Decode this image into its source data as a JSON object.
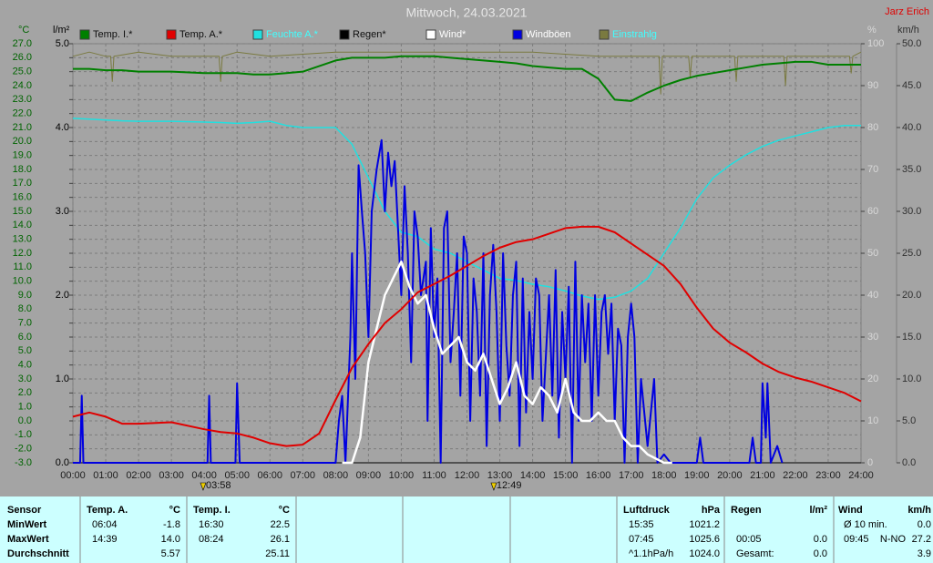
{
  "chart_data": {
    "type": "line",
    "title": "Mittwoch, 24.03.2021",
    "author": "Jarz Erich",
    "grid": true,
    "ylabel": "°C",
    "ylim": [
      -3,
      27
    ],
    "yticks": [
      {
        "value": -3,
        "label": "-3.0"
      },
      {
        "value": -2,
        "label": "-2.0"
      },
      {
        "value": -1,
        "label": "-1.0"
      },
      {
        "value": 0,
        "label": "0.0"
      },
      {
        "value": 1,
        "label": "1.0"
      },
      {
        "value": 2,
        "label": "2.0"
      },
      {
        "value": 3,
        "label": "3.0"
      },
      {
        "value": 4,
        "label": "4.0"
      },
      {
        "value": 5,
        "label": "5.0"
      },
      {
        "value": 6,
        "label": "6.0"
      },
      {
        "value": 7,
        "label": "7.0"
      },
      {
        "value": 8,
        "label": "8.0"
      },
      {
        "value": 9,
        "label": "9.0"
      },
      {
        "value": 10,
        "label": "10.0"
      },
      {
        "value": 11,
        "label": "11.0"
      },
      {
        "value": 12,
        "label": "12.0"
      },
      {
        "value": 13,
        "label": "13.0"
      },
      {
        "value": 14,
        "label": "14.0"
      },
      {
        "value": 15,
        "label": "15.0"
      },
      {
        "value": 16,
        "label": "16.0"
      },
      {
        "value": 17,
        "label": "17.0"
      },
      {
        "value": 18,
        "label": "18.0"
      },
      {
        "value": 19,
        "label": "19.0"
      },
      {
        "value": 20,
        "label": "20.0"
      },
      {
        "value": 21,
        "label": "21.0"
      },
      {
        "value": 22,
        "label": "22.0"
      },
      {
        "value": 23,
        "label": "23.0"
      },
      {
        "value": 24,
        "label": "24.0"
      },
      {
        "value": 25,
        "label": "25.0"
      },
      {
        "value": 26,
        "label": "26.0"
      },
      {
        "value": 27,
        "label": "27.0"
      }
    ],
    "y2label": "l/m²",
    "y2lim": [
      0,
      5
    ],
    "y2ticks": [
      {
        "value": 0,
        "label": "0.0"
      },
      {
        "value": 1,
        "label": "1.0"
      },
      {
        "value": 2,
        "label": "2.0"
      },
      {
        "value": 3,
        "label": "3.0"
      },
      {
        "value": 4,
        "label": "4.0"
      },
      {
        "value": 5,
        "label": "5.0"
      }
    ],
    "y3label": "%",
    "y3lim": [
      0,
      100
    ],
    "y3ticks": [
      0,
      10,
      20,
      30,
      40,
      50,
      60,
      70,
      80,
      90,
      100
    ],
    "y4label": "km/h",
    "y4lim": [
      0,
      50
    ],
    "y4ticks": [
      {
        "value": 0,
        "label": "0.0"
      },
      {
        "value": 5,
        "label": "5.0"
      },
      {
        "value": 10,
        "label": "10.0"
      },
      {
        "value": 15,
        "label": "15.0"
      },
      {
        "value": 20,
        "label": "20.0"
      },
      {
        "value": 25,
        "label": "25.0"
      },
      {
        "value": 30,
        "label": "30.0"
      },
      {
        "value": 35,
        "label": "35.0"
      },
      {
        "value": 40,
        "label": "40.0"
      },
      {
        "value": 45,
        "label": "45.0"
      },
      {
        "value": 50,
        "label": "50.0"
      }
    ],
    "xlim": [
      0,
      24
    ],
    "xticks": [
      {
        "value": 0,
        "label": "00:00"
      },
      {
        "value": 1,
        "label": "01:00"
      },
      {
        "value": 2,
        "label": "02:00"
      },
      {
        "value": 3,
        "label": "03:00"
      },
      {
        "value": 4,
        "label": "04:00"
      },
      {
        "value": 5,
        "label": "05:00"
      },
      {
        "value": 6,
        "label": "06:00"
      },
      {
        "value": 7,
        "label": "07:00"
      },
      {
        "value": 8,
        "label": "08:00"
      },
      {
        "value": 9,
        "label": "09:00"
      },
      {
        "value": 10,
        "label": "10:00"
      },
      {
        "value": 11,
        "label": "11:00"
      },
      {
        "value": 12,
        "label": "12:00"
      },
      {
        "value": 13,
        "label": "13:00"
      },
      {
        "value": 14,
        "label": "14:00"
      },
      {
        "value": 15,
        "label": "15:00"
      },
      {
        "value": 16,
        "label": "16:00"
      },
      {
        "value": 17,
        "label": "17:00"
      },
      {
        "value": 18,
        "label": "18:00"
      },
      {
        "value": 19,
        "label": "19:00"
      },
      {
        "value": 20,
        "label": "20:00"
      },
      {
        "value": 21,
        "label": "21:00"
      },
      {
        "value": 22,
        "label": "22:00"
      },
      {
        "value": 23,
        "label": "23:00"
      },
      {
        "value": 24,
        "label": "24:00"
      }
    ],
    "annotations": [
      {
        "x": 3.9667,
        "label": "03:58"
      },
      {
        "x": 12.8167,
        "label": "12:49"
      }
    ],
    "x": [
      0,
      0.5,
      1,
      1.5,
      2,
      3,
      4,
      4.5,
      5,
      5.5,
      6,
      6.5,
      7,
      7.5,
      8,
      8.5,
      9,
      9.5,
      10,
      10.5,
      11,
      11.5,
      12,
      12.5,
      13,
      13.5,
      14,
      14.5,
      15,
      15.5,
      16,
      16.5,
      17,
      17.5,
      18,
      18.5,
      19,
      19.5,
      20,
      20.5,
      21,
      21.5,
      22,
      22.5,
      23,
      23.5,
      24
    ],
    "series": [
      {
        "name": "Temp. I.*",
        "color": "#008000",
        "axis": "y",
        "values": [
          25.2,
          25.2,
          25.1,
          25.1,
          25.0,
          25.0,
          24.9,
          24.9,
          24.9,
          24.8,
          24.8,
          24.9,
          25.0,
          25.4,
          25.8,
          26.0,
          26.0,
          26.0,
          26.1,
          26.1,
          26.1,
          26.0,
          25.9,
          25.8,
          25.7,
          25.6,
          25.4,
          25.3,
          25.2,
          25.2,
          24.5,
          23.0,
          22.9,
          23.5,
          24.0,
          24.4,
          24.7,
          24.9,
          25.1,
          25.3,
          25.5,
          25.6,
          25.7,
          25.7,
          25.5,
          25.5,
          25.5
        ]
      },
      {
        "name": "Temp. A.*",
        "color": "#e00000",
        "axis": "y",
        "values": [
          0.3,
          0.6,
          0.3,
          -0.2,
          -0.2,
          -0.1,
          -0.6,
          -0.8,
          -0.9,
          -1.2,
          -1.6,
          -1.8,
          -1.7,
          -0.9,
          1.5,
          3.8,
          5.5,
          7.0,
          8.0,
          9.2,
          9.8,
          10.4,
          11.1,
          11.8,
          12.4,
          12.8,
          13.0,
          13.4,
          13.8,
          13.9,
          13.9,
          13.5,
          12.7,
          11.9,
          11.1,
          9.8,
          8.1,
          6.6,
          5.6,
          4.9,
          4.1,
          3.5,
          3.1,
          2.8,
          2.4,
          2.0,
          1.4
        ]
      },
      {
        "name": "Feuchte A.*",
        "color": "#20e0e0",
        "axis": "y3",
        "values": [
          82.2,
          82,
          81.8,
          81.6,
          81.5,
          81.5,
          81.3,
          81.2,
          81.0,
          81.2,
          81.5,
          80.5,
          80.0,
          80.0,
          80.0,
          76,
          68,
          60,
          55,
          54,
          51,
          50,
          48,
          46,
          44,
          43.5,
          42.6,
          42,
          41,
          39.8,
          39,
          39.5,
          41,
          44,
          50,
          56,
          63,
          68,
          71,
          73.5,
          75.5,
          77,
          78,
          79,
          80,
          80.5,
          80.5
        ]
      },
      {
        "name": "Regen*",
        "color": "#000000",
        "axis": "y2",
        "x": [
          0,
          24
        ],
        "values": [
          0,
          0
        ]
      },
      {
        "name": "Wind*",
        "color": "#ffffff",
        "axis": "y4",
        "x": [
          8.2,
          8.5,
          8.75,
          9,
          9.25,
          9.5,
          9.75,
          10,
          10.25,
          10.5,
          10.75,
          11,
          11.25,
          11.5,
          11.75,
          12,
          12.25,
          12.5,
          12.75,
          13,
          13.25,
          13.5,
          13.75,
          14,
          14.25,
          14.5,
          14.75,
          15,
          15.25,
          15.5,
          15.75,
          16,
          16.25,
          16.5,
          16.75,
          17,
          17.25,
          17.5,
          17.75,
          18,
          18.25
        ],
        "values": [
          0,
          0,
          3,
          12,
          16,
          20,
          22,
          24,
          21,
          19,
          20,
          16,
          13,
          14,
          15,
          12,
          11,
          13,
          10,
          7,
          9,
          12,
          8,
          7,
          9,
          8,
          6,
          10,
          6,
          5,
          5,
          6,
          5,
          5,
          3,
          2,
          2,
          1,
          0.5,
          0,
          0
        ]
      },
      {
        "name": "Windböen",
        "color": "#0000e0",
        "axis": "y4",
        "x": [
          0,
          0.22,
          0.27,
          0.32,
          4.1,
          4.15,
          4.2,
          4.95,
          5.0,
          5.08,
          8.0,
          8.1,
          8.2,
          8.3,
          8.45,
          8.5,
          8.6,
          8.7,
          8.8,
          8.9,
          9.0,
          9.1,
          9.25,
          9.4,
          9.5,
          9.6,
          9.7,
          9.8,
          9.9,
          10.0,
          10.1,
          10.2,
          10.3,
          10.4,
          10.5,
          10.6,
          10.75,
          10.8,
          10.9,
          11.0,
          11.1,
          11.2,
          11.3,
          11.4,
          11.5,
          11.6,
          11.7,
          11.8,
          11.9,
          12.0,
          12.1,
          12.2,
          12.3,
          12.4,
          12.5,
          12.6,
          12.7,
          12.8,
          12.9,
          13.0,
          13.1,
          13.2,
          13.3,
          13.4,
          13.5,
          13.6,
          13.7,
          13.8,
          13.9,
          14.0,
          14.1,
          14.2,
          14.3,
          14.5,
          14.6,
          14.7,
          14.8,
          14.9,
          15.0,
          15.1,
          15.2,
          15.3,
          15.4,
          15.5,
          15.6,
          15.7,
          15.8,
          15.9,
          16.0,
          16.1,
          16.2,
          16.3,
          16.4,
          16.5,
          16.6,
          16.7,
          16.8,
          16.9,
          17.0,
          17.1,
          17.2,
          17.3,
          17.5,
          17.7,
          17.8,
          18.0,
          18.2,
          19.0,
          19.1,
          19.2,
          20.6,
          20.7,
          20.8,
          20.95,
          21.0,
          21.1,
          21.15,
          21.25,
          21.45,
          21.6
        ],
        "values": [
          0,
          0,
          8,
          0,
          0,
          8,
          0,
          0,
          9.5,
          0,
          0,
          5,
          8,
          0,
          15,
          25,
          10,
          35.5,
          30,
          25,
          15,
          30,
          35,
          38.5,
          30,
          37,
          33,
          36,
          28,
          20,
          33,
          25,
          12,
          30,
          27,
          20,
          24,
          5,
          28,
          15,
          22,
          0,
          28,
          30,
          12,
          18,
          25,
          8,
          27,
          25,
          5,
          22,
          18,
          8,
          25,
          2,
          20,
          26,
          18,
          5,
          25,
          14,
          8,
          20,
          24,
          2,
          22,
          6,
          18,
          10,
          22,
          20,
          5,
          20,
          8,
          23,
          3,
          18,
          10,
          21,
          0,
          24,
          5,
          20,
          12,
          19,
          5,
          20,
          8,
          18,
          20,
          13,
          19,
          5,
          16,
          14,
          0,
          15,
          19,
          15,
          0,
          10,
          2,
          10,
          0,
          1,
          0,
          0,
          3,
          0,
          0,
          3,
          0,
          0,
          9.5,
          3,
          9.5,
          0,
          2,
          0
        ]
      },
      {
        "name": "Einstrahlg",
        "color": "#7a7a40",
        "axis": "y3",
        "x": [
          0,
          0.5,
          1,
          1.15,
          1.2,
          1.25,
          2,
          3,
          4,
          4.45,
          4.5,
          4.55,
          5,
          6,
          8,
          10,
          12,
          14,
          16,
          17.85,
          17.9,
          17.95,
          18.75,
          18.8,
          18.85,
          20.15,
          20.2,
          20.25,
          21.65,
          21.7,
          21.75,
          23.65,
          23.7,
          23.75,
          24
        ],
        "values": [
          97,
          98,
          97,
          97,
          91,
          97,
          98,
          97,
          97,
          97,
          91,
          97,
          98,
          97,
          98,
          98,
          98,
          98,
          97,
          97,
          88,
          97,
          97,
          92,
          97,
          97,
          91,
          97,
          97,
          90,
          97,
          97,
          93,
          97,
          98
        ]
      }
    ]
  },
  "table": {
    "row_labels": [
      "Sensor",
      "MinWert",
      "MaxWert",
      "Durchschnitt"
    ],
    "sections": [
      {
        "title": "Temp. A.",
        "unit": "°C",
        "rows": [
          {
            "time": "06:04",
            "value": "-1.8"
          },
          {
            "time": "14:39",
            "value": "14.0"
          },
          {
            "value": "5.57"
          }
        ]
      },
      {
        "title": "Temp. I.",
        "unit": "°C",
        "rows": [
          {
            "time": "16:30",
            "value": "22.5"
          },
          {
            "time": "08:24",
            "value": "26.1"
          },
          {
            "value": "25.11"
          }
        ]
      },
      {
        "title": "Luftdruck",
        "unit": "hPa",
        "rows": [
          {
            "time": "15:35",
            "value": "1021.2"
          },
          {
            "time": "07:45",
            "value": "1025.6"
          },
          {
            "time": "^1.1hPa/h",
            "value": "1024.0"
          }
        ]
      },
      {
        "title": "Regen",
        "unit": "l/m²",
        "rows": [
          {},
          {
            "time": "00:05",
            "value": "0.0"
          },
          {
            "time": "Gesamt:",
            "value": "0.0"
          }
        ]
      },
      {
        "title": "Wind",
        "unit": "km/h",
        "rows": [
          {
            "time": "Ø 10 min.",
            "value": "0.0"
          },
          {
            "time": "09:45",
            "dir": "N-NO",
            "value": "27.2"
          },
          {
            "value": "3.9"
          }
        ]
      }
    ]
  }
}
